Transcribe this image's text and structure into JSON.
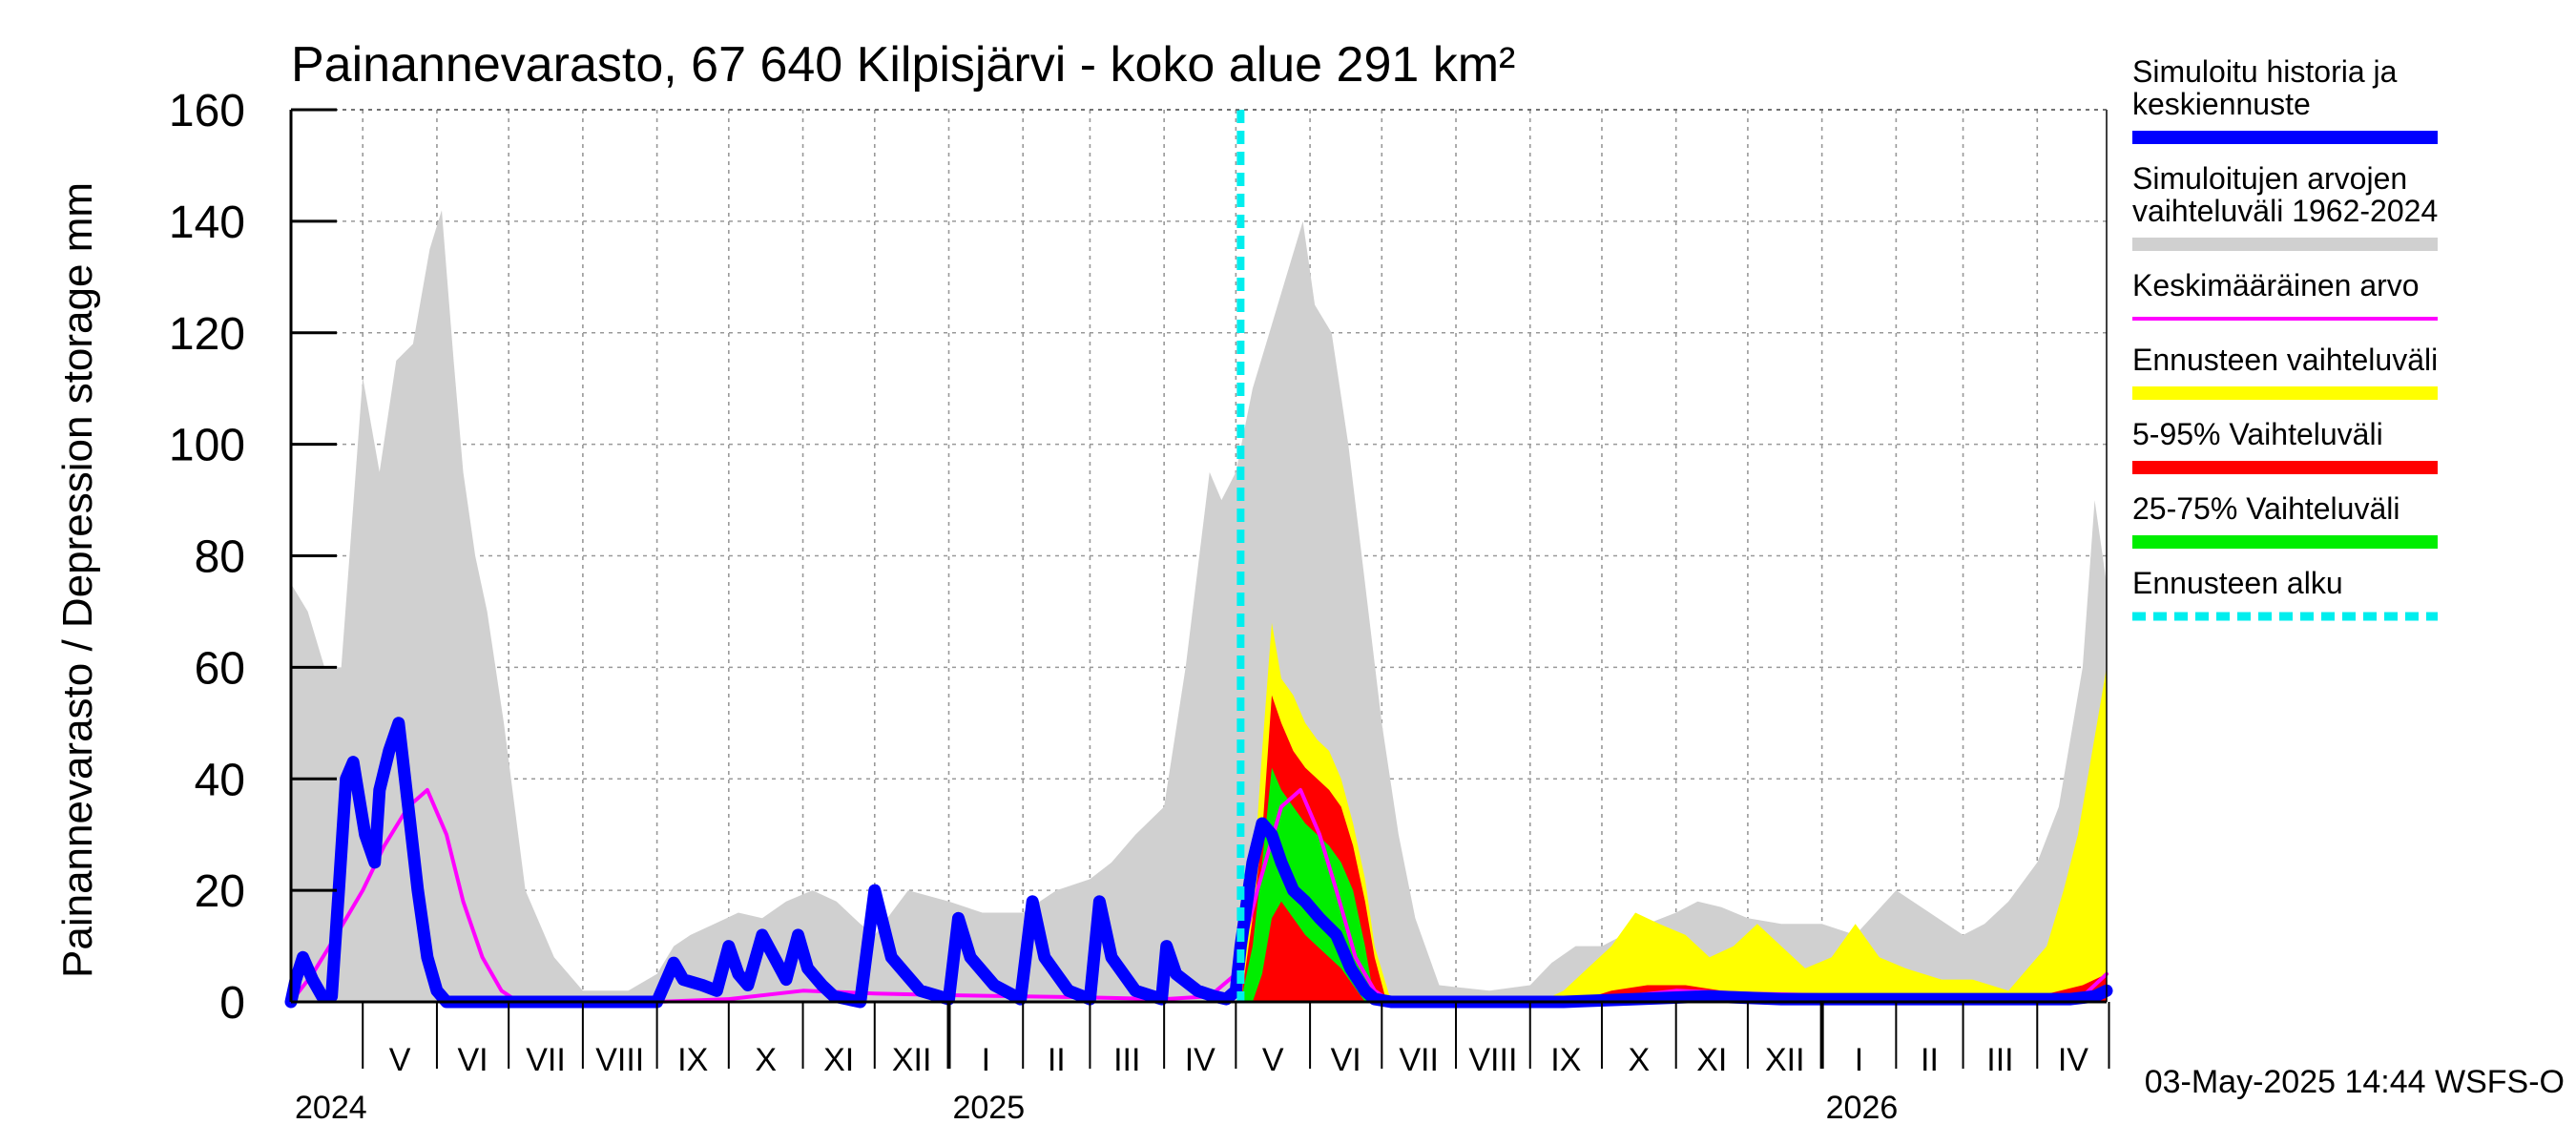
{
  "chart_data": {
    "type": "area",
    "title": "Painannevarasto, 67 640 Kilpisjärvi - koko alue 291 km²",
    "ylabel": "Painannevarasto / Depression storage    mm",
    "ylim": [
      0,
      160
    ],
    "y_ticks": [
      "0",
      "20",
      "40",
      "60",
      "80",
      "100",
      "120",
      "140",
      "160"
    ],
    "x_start": "2024-04-01",
    "x_end": "2026-04-30",
    "months": [
      "V",
      "VI",
      "VII",
      "VIII",
      "IX",
      "X",
      "XI",
      "XII",
      "I",
      "II",
      "III",
      "IV",
      "V",
      "VI",
      "VII",
      "VIII",
      "IX",
      "X",
      "XI",
      "XII",
      "I",
      "II",
      "III",
      "IV"
    ],
    "years": [
      "2024",
      "2025",
      "2026"
    ],
    "forecast_start": "2025-05-03",
    "grid": true,
    "legend_position": "right",
    "footer": "03-May-2025 14:44 WSFS-O",
    "series": [
      {
        "name": "Simuloitujen arvojen vaihteluväli 1962-2024",
        "color": "#d0d0d0",
        "style": "band",
        "x": [
          "2024-04-01",
          "2024-04-08",
          "2024-04-15",
          "2024-04-22",
          "2024-05-01",
          "2024-05-08",
          "2024-05-15",
          "2024-05-22",
          "2024-05-29",
          "2024-06-03",
          "2024-06-08",
          "2024-06-12",
          "2024-06-17",
          "2024-06-22",
          "2024-06-29",
          "2024-07-08",
          "2024-07-20",
          "2024-08-01",
          "2024-08-20",
          "2024-09-01",
          "2024-09-08",
          "2024-09-15",
          "2024-09-25",
          "2024-10-05",
          "2024-10-15",
          "2024-10-25",
          "2024-11-05",
          "2024-11-15",
          "2024-11-25",
          "2024-12-01",
          "2024-12-15",
          "2025-01-01",
          "2025-01-15",
          "2025-02-01",
          "2025-02-15",
          "2025-03-01",
          "2025-03-10",
          "2025-03-20",
          "2025-04-01",
          "2025-04-10",
          "2025-04-20",
          "2025-04-25",
          "2025-05-01",
          "2025-05-08",
          "2025-05-15",
          "2025-05-22",
          "2025-05-29",
          "2025-06-03",
          "2025-06-10",
          "2025-06-17",
          "2025-06-24",
          "2025-07-01",
          "2025-07-08",
          "2025-07-15",
          "2025-07-25",
          "2025-08-15",
          "2025-09-01",
          "2025-09-10",
          "2025-09-20",
          "2025-10-01",
          "2025-10-10",
          "2025-10-20",
          "2025-11-01",
          "2025-11-10",
          "2025-11-20",
          "2025-12-01",
          "2025-12-15",
          "2026-01-01",
          "2026-01-15",
          "2026-02-01",
          "2026-02-15",
          "2026-03-01",
          "2026-03-10",
          "2026-03-20",
          "2026-04-01",
          "2026-04-10",
          "2026-04-20",
          "2026-04-25",
          "2026-04-30"
        ],
        "upper": [
          75,
          70,
          60,
          60,
          112,
          95,
          115,
          118,
          135,
          142,
          115,
          95,
          80,
          70,
          50,
          20,
          8,
          2,
          2,
          5,
          10,
          12,
          14,
          16,
          15,
          18,
          20,
          18,
          14,
          12,
          20,
          18,
          16,
          16,
          20,
          22,
          25,
          30,
          35,
          60,
          95,
          90,
          95,
          110,
          120,
          130,
          140,
          125,
          120,
          100,
          75,
          50,
          30,
          15,
          3,
          2,
          3,
          7,
          10,
          10,
          12,
          14,
          16,
          18,
          17,
          15,
          14,
          14,
          12,
          20,
          16,
          12,
          14,
          18,
          25,
          35,
          60,
          90,
          75
        ],
        "lower": [
          0,
          0,
          0,
          0,
          0,
          0,
          0,
          0,
          0,
          0,
          0,
          0,
          0,
          0,
          0,
          0,
          0,
          0,
          0,
          0,
          0,
          0,
          0,
          0,
          0,
          0,
          0,
          0,
          0,
          0,
          0,
          0,
          0,
          0,
          0,
          0,
          0,
          0,
          0,
          0,
          0,
          0,
          0,
          0,
          0,
          0,
          0,
          0,
          0,
          0,
          0,
          0,
          0,
          0,
          0,
          0,
          0,
          0,
          0,
          0,
          0,
          0,
          0,
          0,
          0,
          0,
          0,
          0,
          0,
          0,
          0,
          0,
          0,
          0,
          0,
          0,
          0,
          0,
          0
        ]
      },
      {
        "name": "Ennusteen vaihteluväli",
        "color": "#ffff00",
        "style": "band",
        "x": [
          "2025-05-03",
          "2025-05-08",
          "2025-05-12",
          "2025-05-16",
          "2025-05-20",
          "2025-05-25",
          "2025-05-30",
          "2025-06-04",
          "2025-06-09",
          "2025-06-14",
          "2025-06-19",
          "2025-06-24",
          "2025-06-28",
          "2025-07-05",
          "2025-09-05",
          "2025-09-15",
          "2025-09-25",
          "2025-10-05",
          "2025-10-15",
          "2025-10-25",
          "2025-11-05",
          "2025-11-15",
          "2025-11-25",
          "2025-12-05",
          "2025-12-15",
          "2025-12-25",
          "2026-01-05",
          "2026-01-15",
          "2026-01-25",
          "2026-02-05",
          "2026-02-20",
          "2026-03-05",
          "2026-03-20",
          "2026-04-05",
          "2026-04-12",
          "2026-04-18",
          "2026-04-24",
          "2026-04-30"
        ],
        "upper": [
          0,
          20,
          45,
          68,
          58,
          55,
          50,
          47,
          45,
          40,
          32,
          22,
          10,
          0,
          0,
          2,
          6,
          10,
          16,
          14,
          12,
          8,
          10,
          14,
          10,
          6,
          8,
          14,
          8,
          6,
          4,
          4,
          2,
          10,
          20,
          30,
          45,
          60
        ],
        "lower": [
          0,
          0,
          0,
          0,
          0,
          0,
          0,
          0,
          0,
          0,
          0,
          0,
          0,
          0,
          0,
          0,
          0,
          0,
          0,
          0,
          0,
          0,
          0,
          0,
          0,
          0,
          0,
          0,
          0,
          0,
          0,
          0,
          0,
          0,
          0,
          0,
          0,
          0
        ]
      },
      {
        "name": "5-95% Vaihteluväli",
        "color": "#ff0000",
        "style": "band",
        "x": [
          "2025-05-03",
          "2025-05-08",
          "2025-05-12",
          "2025-05-16",
          "2025-05-20",
          "2025-05-25",
          "2025-05-30",
          "2025-06-04",
          "2025-06-09",
          "2025-06-14",
          "2025-06-19",
          "2025-06-24",
          "2025-06-28",
          "2025-07-03",
          "2025-09-20",
          "2025-10-05",
          "2025-10-20",
          "2025-11-05",
          "2025-11-20",
          "2025-12-05",
          "2026-01-01",
          "2026-02-01",
          "2026-03-01",
          "2026-04-01",
          "2026-04-20",
          "2026-04-30"
        ],
        "upper": [
          0,
          15,
          30,
          55,
          50,
          45,
          42,
          40,
          38,
          35,
          28,
          18,
          8,
          0,
          0,
          2,
          3,
          3,
          2,
          1,
          1,
          1,
          1,
          1,
          3,
          5
        ],
        "lower": [
          0,
          0,
          0,
          0,
          0,
          0,
          0,
          0,
          0,
          0,
          0,
          0,
          0,
          0,
          0,
          0,
          0,
          0,
          0,
          0,
          0,
          0,
          0,
          0,
          0,
          0
        ]
      },
      {
        "name": "25-75% Vaihteluväli",
        "color": "#00ee00",
        "style": "band",
        "x": [
          "2025-05-03",
          "2025-05-08",
          "2025-05-12",
          "2025-05-16",
          "2025-05-20",
          "2025-05-25",
          "2025-05-30",
          "2025-06-04",
          "2025-06-09",
          "2025-06-14",
          "2025-06-19",
          "2025-06-24",
          "2025-06-28"
        ],
        "upper": [
          0,
          10,
          25,
          42,
          38,
          35,
          32,
          30,
          28,
          25,
          20,
          10,
          0
        ],
        "lower": [
          0,
          0,
          5,
          15,
          18,
          15,
          12,
          10,
          8,
          6,
          3,
          0,
          0
        ]
      },
      {
        "name": "Keskimääräinen arvo",
        "color": "#ff00ff",
        "style": "line",
        "x": [
          "2024-04-01",
          "2024-04-10",
          "2024-04-20",
          "2024-05-01",
          "2024-05-10",
          "2024-05-20",
          "2024-05-28",
          "2024-06-05",
          "2024-06-12",
          "2024-06-20",
          "2024-06-28",
          "2024-07-05",
          "2024-09-01",
          "2024-10-01",
          "2024-11-01",
          "2024-12-01",
          "2025-01-01",
          "2025-02-01",
          "2025-03-01",
          "2025-04-01",
          "2025-04-20",
          "2025-05-01",
          "2025-05-10",
          "2025-05-20",
          "2025-05-28",
          "2025-06-05",
          "2025-06-12",
          "2025-06-20",
          "2025-06-28",
          "2025-07-05",
          "2025-09-01",
          "2025-10-01",
          "2025-11-01",
          "2025-12-01",
          "2026-01-01",
          "2026-02-01",
          "2026-03-01",
          "2026-04-01",
          "2026-04-20",
          "2026-04-30"
        ],
        "values": [
          0,
          5,
          12,
          20,
          28,
          35,
          38,
          30,
          18,
          8,
          2,
          0,
          0,
          0.5,
          2,
          1.5,
          1.2,
          1,
          0.8,
          0.5,
          1,
          5,
          20,
          35,
          38,
          30,
          20,
          8,
          2,
          0,
          0,
          0.5,
          2,
          1.5,
          1.2,
          1,
          0.8,
          0.5,
          1,
          5
        ]
      },
      {
        "name": "Simuloitu historia ja keskiennuste",
        "color": "#0000ff",
        "style": "line",
        "x": [
          "2024-04-01",
          "2024-04-03",
          "2024-04-06",
          "2024-04-10",
          "2024-04-14",
          "2024-04-18",
          "2024-04-21",
          "2024-04-24",
          "2024-04-27",
          "2024-05-02",
          "2024-05-06",
          "2024-05-08",
          "2024-05-12",
          "2024-05-16",
          "2024-05-20",
          "2024-05-24",
          "2024-05-28",
          "2024-06-01",
          "2024-06-05",
          "2024-06-15",
          "2024-09-01",
          "2024-09-08",
          "2024-09-12",
          "2024-09-20",
          "2024-09-26",
          "2024-10-01",
          "2024-10-05",
          "2024-10-09",
          "2024-10-15",
          "2024-10-20",
          "2024-10-25",
          "2024-10-30",
          "2024-11-03",
          "2024-11-09",
          "2024-11-14",
          "2024-11-25",
          "2024-12-01",
          "2024-12-08",
          "2024-12-20",
          "2025-01-01",
          "2025-01-05",
          "2025-01-10",
          "2025-01-20",
          "2025-01-31",
          "2025-02-05",
          "2025-02-10",
          "2025-02-20",
          "2025-03-01",
          "2025-03-05",
          "2025-03-10",
          "2025-03-20",
          "2025-03-31",
          "2025-04-02",
          "2025-04-06",
          "2025-04-15",
          "2025-04-22",
          "2025-04-27",
          "2025-05-01",
          "2025-05-03",
          "2025-05-08",
          "2025-05-12",
          "2025-05-16",
          "2025-05-20",
          "2025-05-25",
          "2025-05-30",
          "2025-06-05",
          "2025-06-12",
          "2025-06-18",
          "2025-06-24",
          "2025-06-28",
          "2025-07-05",
          "2025-09-15",
          "2025-10-15",
          "2025-11-15",
          "2025-12-15",
          "2026-01-15",
          "2026-02-15",
          "2026-03-15",
          "2026-04-15",
          "2026-04-25",
          "2026-04-30"
        ],
        "values": [
          0,
          4,
          8,
          4,
          1,
          1,
          20,
          40,
          43,
          30,
          25,
          38,
          45,
          50,
          35,
          20,
          8,
          2,
          0,
          0,
          0,
          7,
          4,
          3,
          2,
          10,
          5,
          3,
          12,
          8,
          4,
          12,
          6,
          3,
          1,
          0,
          20,
          8,
          2,
          0.5,
          15,
          8,
          3,
          0.5,
          18,
          8,
          2,
          0.5,
          18,
          8,
          2,
          0.5,
          10,
          5,
          2,
          1,
          0.5,
          2,
          10,
          25,
          32,
          30,
          25,
          20,
          18,
          15,
          12,
          6,
          2,
          0.5,
          0,
          0,
          0.5,
          1,
          0.5,
          0.5,
          0.5,
          0.5,
          0.5,
          1,
          2
        ]
      }
    ],
    "legend": [
      {
        "label": "Simuloitu historia ja keskiennuste",
        "color": "#0000ff",
        "style": "solid"
      },
      {
        "label": "Simuloitujen arvojen vaihteluväli 1962-2024",
        "color": "#d0d0d0",
        "style": "solid"
      },
      {
        "label": "Keskimääräinen arvo",
        "color": "#ff00ff",
        "style": "thin"
      },
      {
        "label": "Ennusteen vaihteluväli",
        "color": "#ffff00",
        "style": "solid"
      },
      {
        "label": "5-95% Vaihteluväli",
        "color": "#ff0000",
        "style": "solid"
      },
      {
        "label": "25-75% Vaihteluväli",
        "color": "#00ee00",
        "style": "solid"
      },
      {
        "label": "Ennusteen alku",
        "color": "#00eeee",
        "style": "dashed"
      }
    ]
  }
}
